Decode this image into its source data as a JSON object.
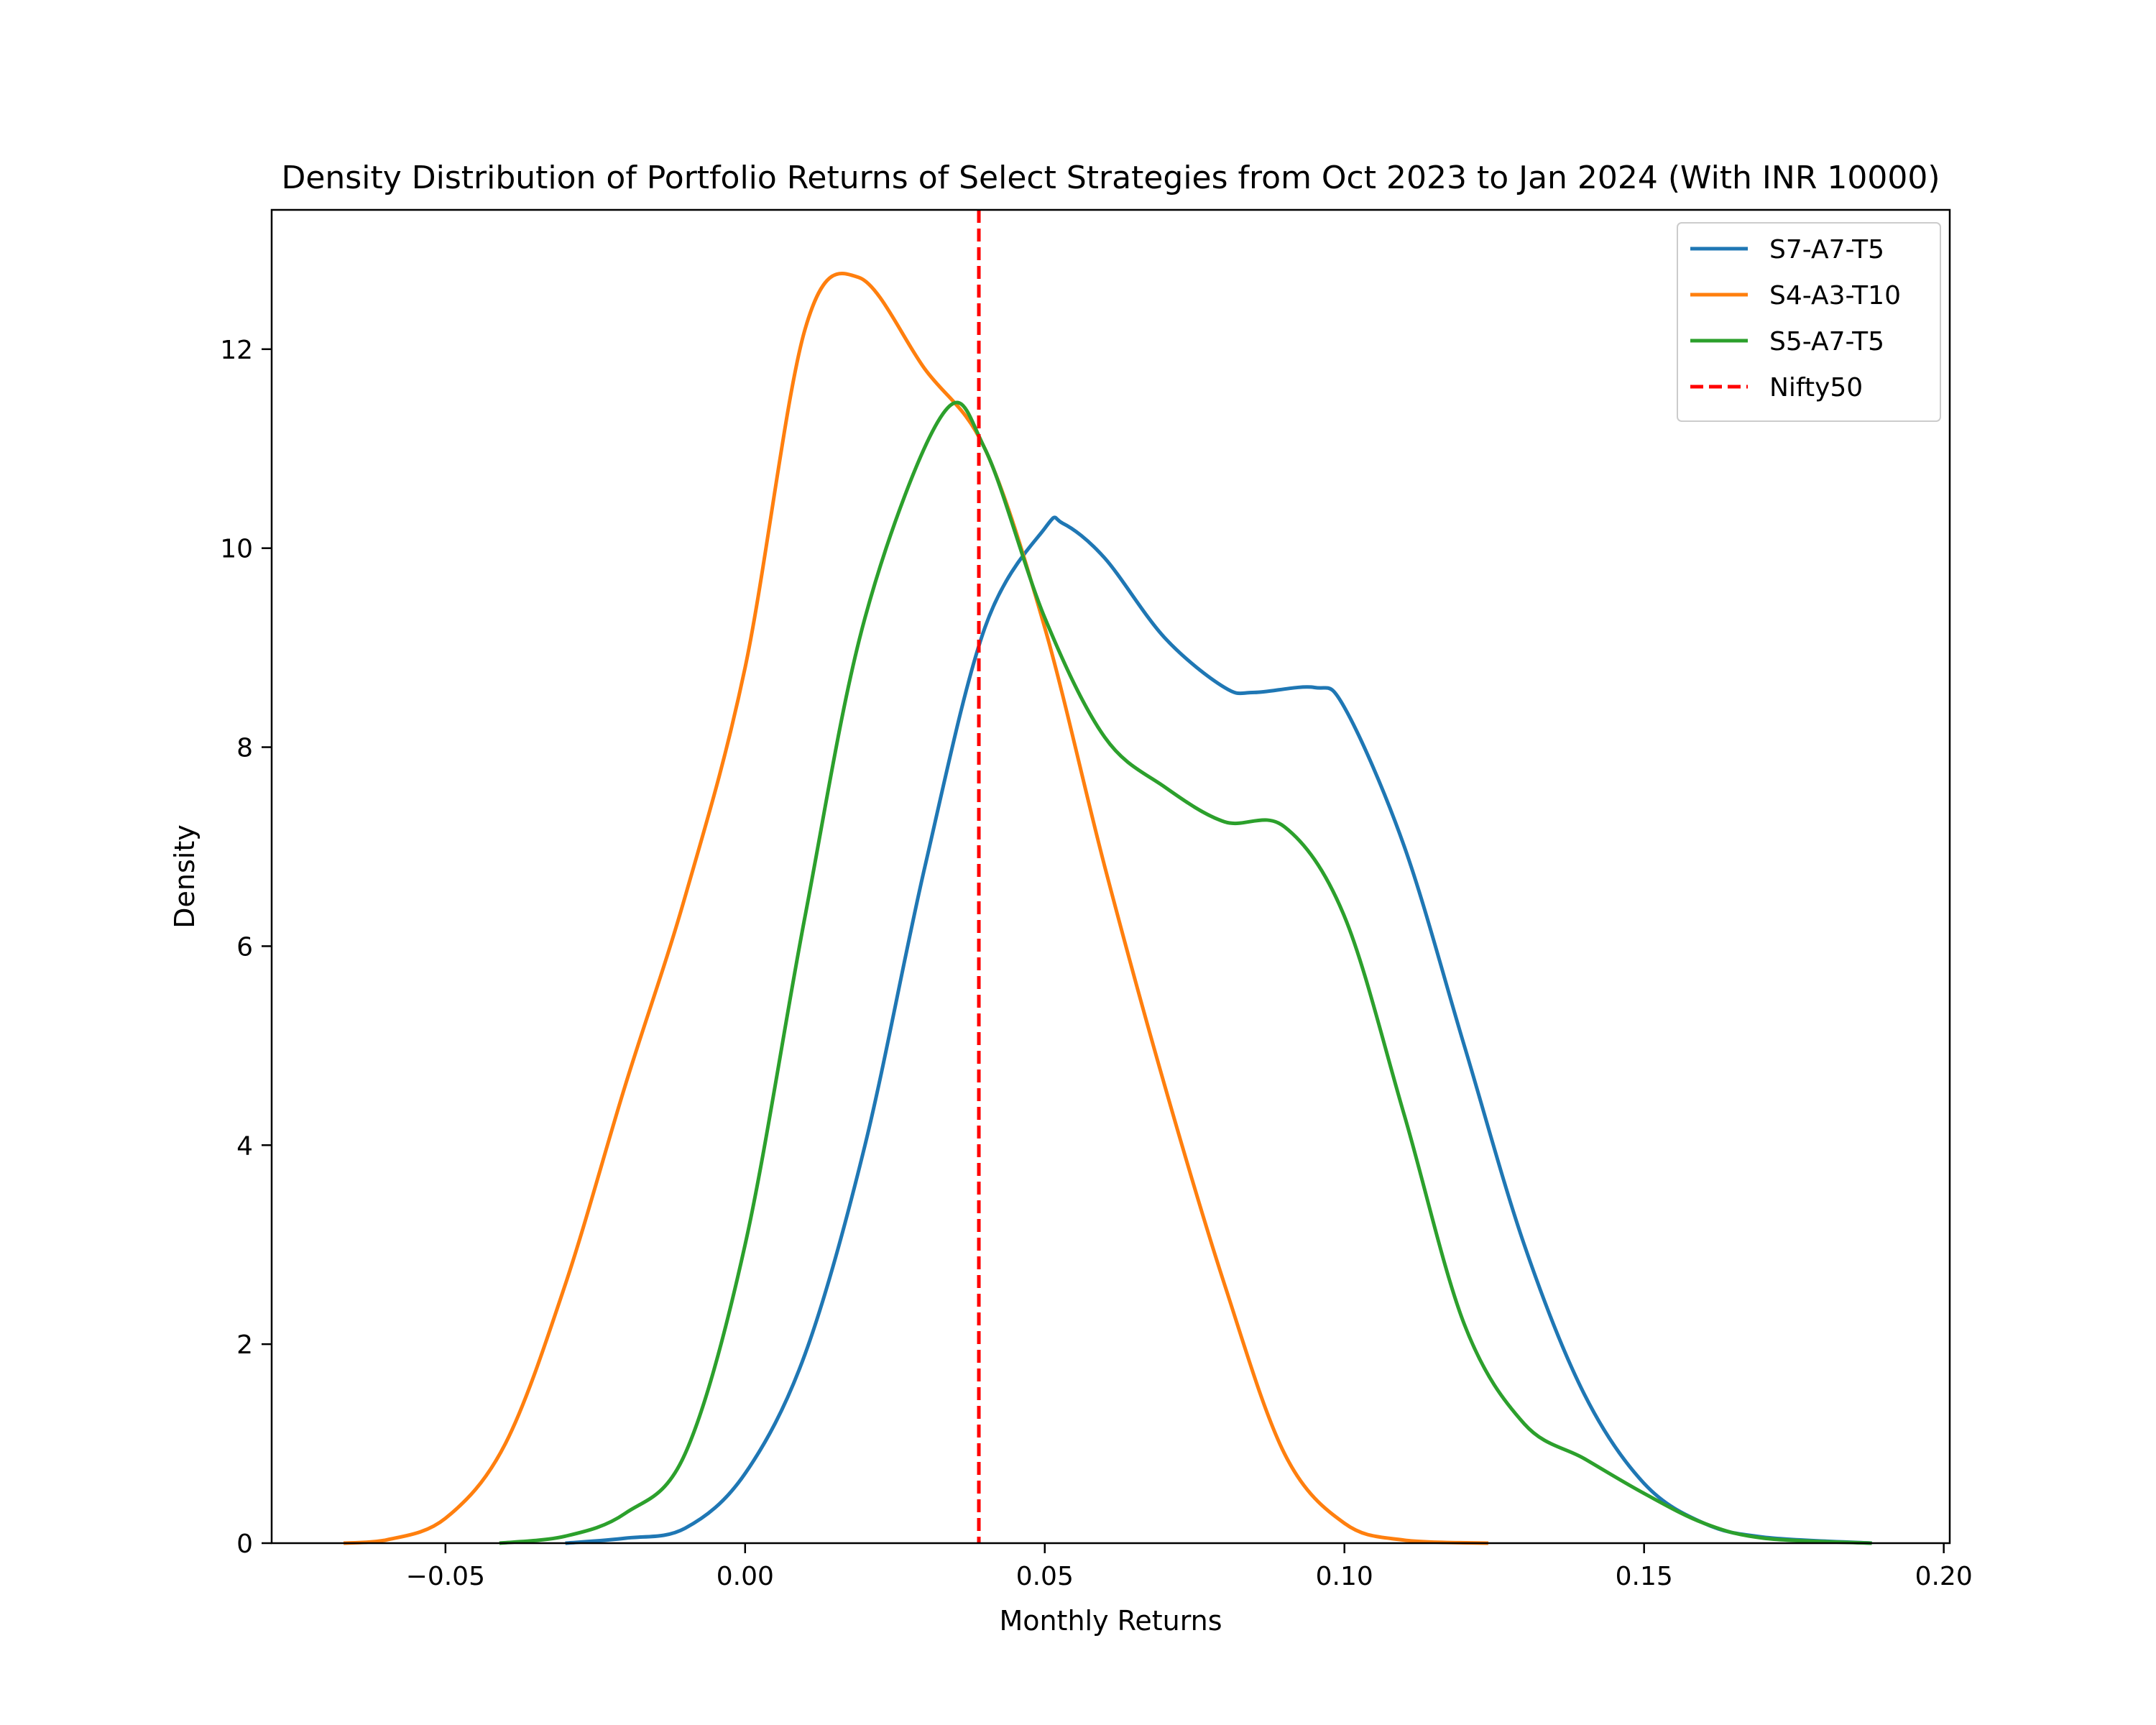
{
  "chart_data": {
    "type": "line",
    "title": "Density Distribution of Portfolio Returns of Select Strategies from Oct 2023 to Jan 2024 (With INR 10000)",
    "xlabel": "Monthly Returns",
    "ylabel": "Density",
    "xlim": [
      -0.079,
      0.201
    ],
    "ylim": [
      0,
      13.4
    ],
    "xticks": [
      -0.05,
      0.0,
      0.05,
      0.1,
      0.15,
      0.2
    ],
    "xtick_labels": [
      "−0.05",
      "0.00",
      "0.05",
      "0.10",
      "0.15",
      "0.20"
    ],
    "yticks": [
      0,
      2,
      4,
      6,
      8,
      10,
      12
    ],
    "ytick_labels": [
      "0",
      "2",
      "4",
      "6",
      "8",
      "10",
      "12"
    ],
    "grid": false,
    "legend_position": "top-right",
    "series": [
      {
        "name": "S7-A7-T5",
        "color": "#1f77b4",
        "points": [
          [
            -0.03,
            0.0
          ],
          [
            -0.02,
            0.05
          ],
          [
            -0.01,
            0.15
          ],
          [
            0.0,
            0.7
          ],
          [
            0.01,
            1.9
          ],
          [
            0.02,
            4.0
          ],
          [
            0.03,
            6.8
          ],
          [
            0.04,
            9.2
          ],
          [
            0.05,
            10.2
          ],
          [
            0.053,
            10.25
          ],
          [
            0.06,
            9.9
          ],
          [
            0.07,
            9.1
          ],
          [
            0.08,
            8.6
          ],
          [
            0.085,
            8.55
          ],
          [
            0.095,
            8.6
          ],
          [
            0.1,
            8.4
          ],
          [
            0.11,
            7.0
          ],
          [
            0.12,
            5.0
          ],
          [
            0.13,
            3.0
          ],
          [
            0.14,
            1.5
          ],
          [
            0.15,
            0.6
          ],
          [
            0.16,
            0.2
          ],
          [
            0.17,
            0.06
          ],
          [
            0.188,
            0.0
          ]
        ]
      },
      {
        "name": "S4-A3-T10",
        "color": "#ff7f0e",
        "points": [
          [
            -0.067,
            0.0
          ],
          [
            -0.06,
            0.03
          ],
          [
            -0.05,
            0.25
          ],
          [
            -0.04,
            1.0
          ],
          [
            -0.03,
            2.6
          ],
          [
            -0.02,
            4.6
          ],
          [
            -0.01,
            6.5
          ],
          [
            0.0,
            8.8
          ],
          [
            0.01,
            12.2
          ],
          [
            0.019,
            12.72
          ],
          [
            0.03,
            11.8
          ],
          [
            0.04,
            11.0
          ],
          [
            0.05,
            9.2
          ],
          [
            0.06,
            6.8
          ],
          [
            0.07,
            4.6
          ],
          [
            0.08,
            2.6
          ],
          [
            0.09,
            0.9
          ],
          [
            0.1,
            0.2
          ],
          [
            0.11,
            0.03
          ],
          [
            0.124,
            0.0
          ]
        ]
      },
      {
        "name": "S5-A7-T5",
        "color": "#2ca02c",
        "points": [
          [
            -0.041,
            0.0
          ],
          [
            -0.03,
            0.07
          ],
          [
            -0.02,
            0.3
          ],
          [
            -0.01,
            0.9
          ],
          [
            0.0,
            3.0
          ],
          [
            0.01,
            6.3
          ],
          [
            0.02,
            9.3
          ],
          [
            0.033,
            11.35
          ],
          [
            0.04,
            11.0
          ],
          [
            0.05,
            9.3
          ],
          [
            0.06,
            8.1
          ],
          [
            0.07,
            7.6
          ],
          [
            0.08,
            7.25
          ],
          [
            0.09,
            7.2
          ],
          [
            0.1,
            6.3
          ],
          [
            0.11,
            4.3
          ],
          [
            0.12,
            2.2
          ],
          [
            0.13,
            1.2
          ],
          [
            0.14,
            0.85
          ],
          [
            0.15,
            0.5
          ],
          [
            0.16,
            0.2
          ],
          [
            0.17,
            0.05
          ],
          [
            0.188,
            0.0
          ]
        ]
      },
      {
        "name": "Nifty50",
        "color": "#ff0000",
        "style": "dashed",
        "vertical_line_x": 0.039
      }
    ]
  }
}
